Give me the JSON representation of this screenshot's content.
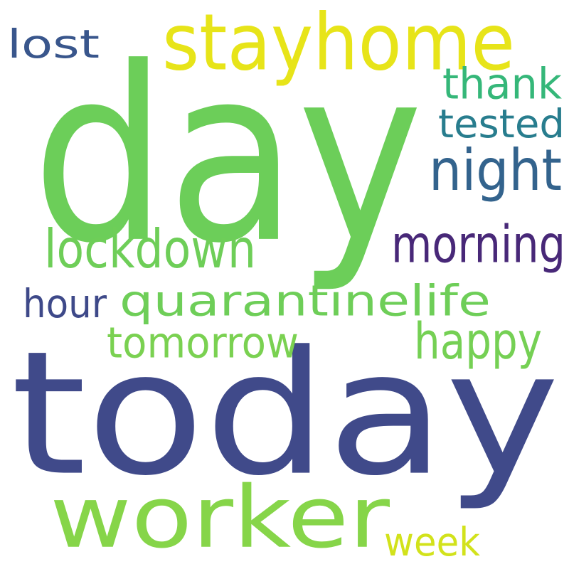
{
  "words": [
    {
      "id": "day",
      "text": "day",
      "color": "#6cce59"
    },
    {
      "id": "today",
      "text": "today",
      "color": "#404a8a"
    },
    {
      "id": "worker",
      "text": "worker",
      "color": "#86d549"
    },
    {
      "id": "stayhome",
      "text": "stayhome",
      "color": "#e7e419"
    },
    {
      "id": "lost",
      "text": "lost",
      "color": "#39568c"
    },
    {
      "id": "thank",
      "text": "thank",
      "color": "#35b779"
    },
    {
      "id": "tested",
      "text": "tested",
      "color": "#287d8e"
    },
    {
      "id": "night",
      "text": "night",
      "color": "#33638d"
    },
    {
      "id": "lockdown",
      "text": "lockdown",
      "color": "#6ece58"
    },
    {
      "id": "morning",
      "text": "morning",
      "color": "#482878"
    },
    {
      "id": "quarantinelife",
      "text": "quarantinelife",
      "color": "#6ece58"
    },
    {
      "id": "hour",
      "text": "hour",
      "color": "#3e4989"
    },
    {
      "id": "happy",
      "text": "happy",
      "color": "#75d054"
    },
    {
      "id": "tomorrow",
      "text": "tomorrow",
      "color": "#7ad151"
    },
    {
      "id": "week",
      "text": "week",
      "color": "#d2e21b"
    }
  ]
}
